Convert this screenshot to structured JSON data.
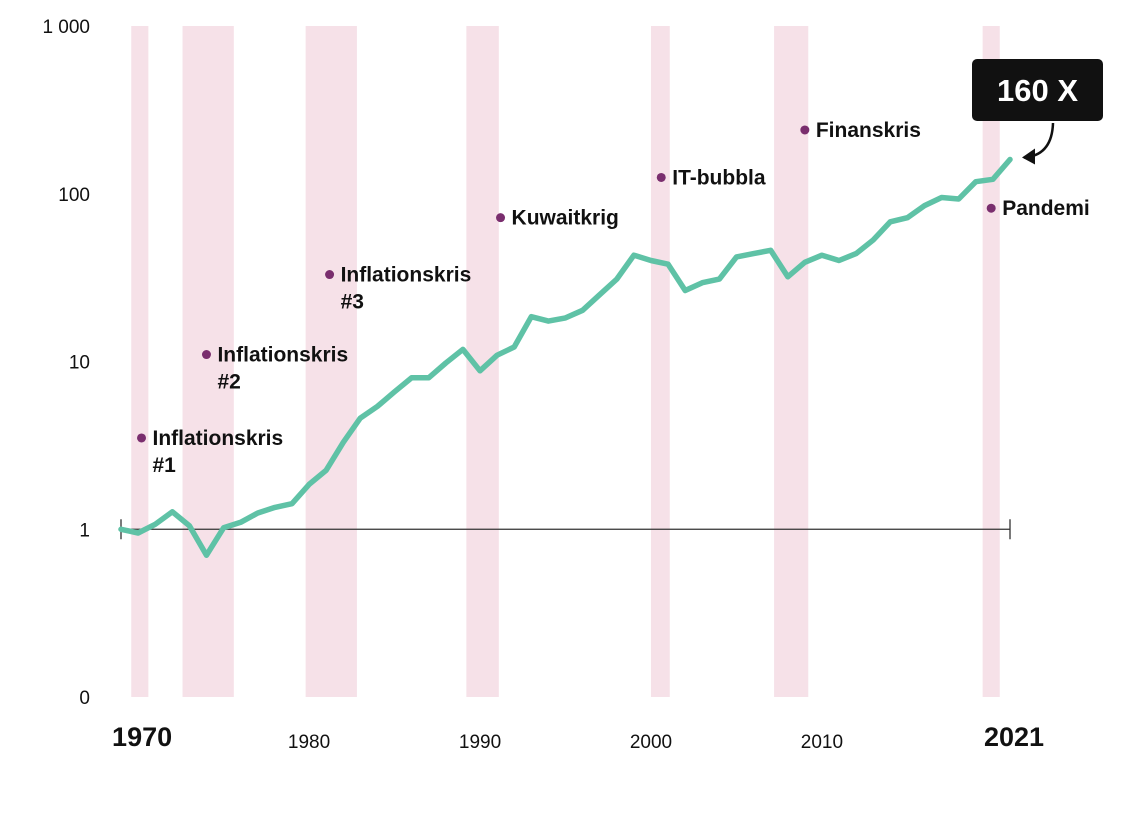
{
  "chart_data": {
    "type": "line",
    "yscale": "log",
    "ylim": [
      0.1,
      1000
    ],
    "xlim": [
      1969,
      2021
    ],
    "y_tick_labels": [
      {
        "value": 1000,
        "label": "1 000"
      },
      {
        "value": 100,
        "label": "100"
      },
      {
        "value": 10,
        "label": "10"
      },
      {
        "value": 1,
        "label": "1"
      },
      {
        "value": 0.1,
        "label": "0"
      }
    ],
    "x_tick_labels": [
      {
        "value": 1970,
        "label": "1970",
        "emphasis": true
      },
      {
        "value": 1980,
        "label": "1980",
        "emphasis": false
      },
      {
        "value": 1990,
        "label": "1990",
        "emphasis": false
      },
      {
        "value": 2000,
        "label": "2000",
        "emphasis": false
      },
      {
        "value": 2010,
        "label": "2010",
        "emphasis": false
      },
      {
        "value": 2021,
        "label": "2021",
        "emphasis": true
      }
    ],
    "line_color": "#5fc2a6",
    "band_color": "#f6e1e8",
    "marker_color": "#7a2e6e",
    "series": [
      {
        "x": [
          1969,
          1970,
          1971,
          1972,
          1973,
          1974,
          1975,
          1976,
          1977,
          1978,
          1979,
          1980,
          1981,
          1982,
          1983,
          1984,
          1985,
          1986,
          1987,
          1988,
          1989,
          1990,
          1991,
          1992,
          1993,
          1994,
          1995,
          1996,
          1997,
          1998,
          1999,
          2000,
          2001,
          2002,
          2003,
          2004,
          2005,
          2006,
          2007,
          2008,
          2009,
          2010,
          2011,
          2012,
          2013,
          2014,
          2015,
          2016,
          2017,
          2018,
          2019,
          2020,
          2021
        ],
        "y": [
          1.0,
          0.95,
          1.07,
          1.27,
          1.05,
          0.7,
          1.02,
          1.1,
          1.25,
          1.35,
          1.42,
          1.85,
          2.25,
          3.3,
          4.6,
          5.4,
          6.6,
          8.0,
          8.0,
          9.8,
          11.8,
          8.8,
          10.9,
          12.2,
          18.5,
          17.4,
          18.2,
          20.2,
          25.0,
          31.0,
          43.0,
          40.0,
          38.0,
          26.5,
          29.5,
          31.0,
          42.0,
          44.0,
          46.0,
          32.0,
          39.0,
          43.0,
          40.0,
          44.0,
          53.0,
          68.0,
          72.0,
          85.0,
          95.0,
          93.0,
          118.0,
          122.0,
          160.0
        ]
      }
    ],
    "bands": [
      [
        1969.6,
        1970.6
      ],
      [
        1972.6,
        1975.6
      ],
      [
        1979.8,
        1982.8
      ],
      [
        1989.2,
        1991.1
      ],
      [
        2000.0,
        2001.1
      ],
      [
        2007.2,
        2009.2
      ],
      [
        2019.4,
        2020.4
      ]
    ],
    "events": [
      {
        "name": "Inflationskris",
        "suffix": "#1",
        "x": 1970.2,
        "y": 3.5
      },
      {
        "name": "Inflationskris",
        "suffix": "#2",
        "x": 1974.0,
        "y": 11.0
      },
      {
        "name": "Inflationskris",
        "suffix": "#3",
        "x": 1981.2,
        "y": 33.0
      },
      {
        "name": "Kuwaitkrig",
        "suffix": "",
        "x": 1991.2,
        "y": 72.0
      },
      {
        "name": "IT-bubbla",
        "suffix": "",
        "x": 2000.6,
        "y": 125.0
      },
      {
        "name": "Finanskris",
        "suffix": "",
        "x": 2009.0,
        "y": 240.0
      },
      {
        "name": "Pandemi",
        "suffix": "",
        "x": 2019.9,
        "y": 82.0
      }
    ],
    "callout": {
      "text": "160 X",
      "x": 2021,
      "y": 160
    }
  }
}
